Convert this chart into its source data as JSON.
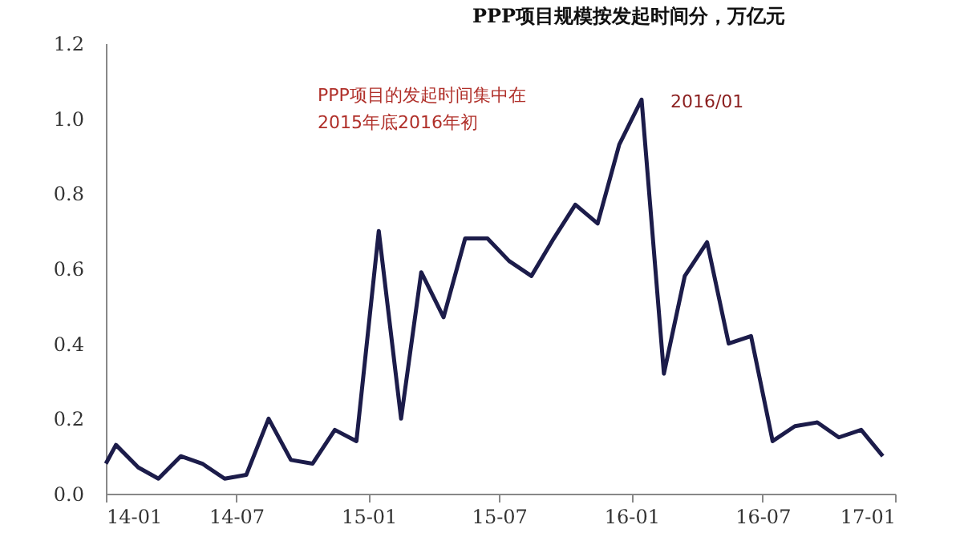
{
  "chart_data": {
    "type": "line",
    "title": "PPP项目规模按发起时间分，万亿元",
    "x": [
      "2014-01-01",
      "2014-01-15",
      "2014-02-15",
      "2014-03-15",
      "2014-04-15",
      "2014-05-15",
      "2014-06-15",
      "2014-07-15",
      "2014-08-15",
      "2014-09-15",
      "2014-10-15",
      "2014-11-15",
      "2014-12-15",
      "2015-01-15",
      "2015-02-15",
      "2015-03-15",
      "2015-04-15",
      "2015-05-15",
      "2015-06-15",
      "2015-07-15",
      "2015-08-15",
      "2015-09-15",
      "2015-10-15",
      "2015-11-15",
      "2015-12-15",
      "2016-01-15",
      "2016-02-15",
      "2016-03-15",
      "2016-04-15",
      "2016-05-15",
      "2016-06-15",
      "2016-07-15",
      "2016-08-15",
      "2016-09-15",
      "2016-10-15",
      "2016-11-15",
      "2016-12-15"
    ],
    "series": [
      {
        "color": "#1c1c4a",
        "values": [
          0.08,
          0.13,
          0.07,
          0.04,
          0.1,
          0.08,
          0.04,
          0.05,
          0.2,
          0.09,
          0.08,
          0.17,
          0.14,
          0.7,
          0.2,
          0.59,
          0.47,
          0.68,
          0.68,
          0.62,
          0.58,
          0.68,
          0.77,
          0.72,
          0.93,
          1.05,
          0.32,
          0.58,
          0.67,
          0.4,
          0.42,
          0.14,
          0.18,
          0.19,
          0.15,
          0.17,
          0.1
        ]
      }
    ],
    "annotations": [
      "PPP项目的发起时间集中在2015年底2016年初",
      {
        "text": "2016/01",
        "x": "2016-01-15",
        "y": 1.05
      }
    ],
    "xlim": [
      "2014-01",
      "2017-01"
    ],
    "xticks": [
      {
        "value": "2014-01",
        "label": "14-01"
      },
      {
        "value": "2014-07",
        "label": "14-07"
      },
      {
        "value": "2015-01",
        "label": "15-01"
      },
      {
        "value": "2015-07",
        "label": "15-07"
      },
      {
        "value": "2016-01",
        "label": "16-01"
      },
      {
        "value": "2016-07",
        "label": "16-07"
      },
      {
        "value": "2017-01",
        "label": "17-01"
      }
    ],
    "ylim": [
      0,
      1.2
    ],
    "yticks": [
      {
        "value": 0,
        "label": "0.0"
      },
      {
        "value": 0.2,
        "label": "0.2"
      },
      {
        "value": 0.4,
        "label": "0.4"
      },
      {
        "value": 0.6,
        "label": "0.6"
      },
      {
        "value": 0.8,
        "label": "0.8"
      },
      {
        "value": 1,
        "label": "1.0"
      },
      {
        "value": 1.2,
        "label": "1.2"
      }
    ],
    "grid": false
  }
}
